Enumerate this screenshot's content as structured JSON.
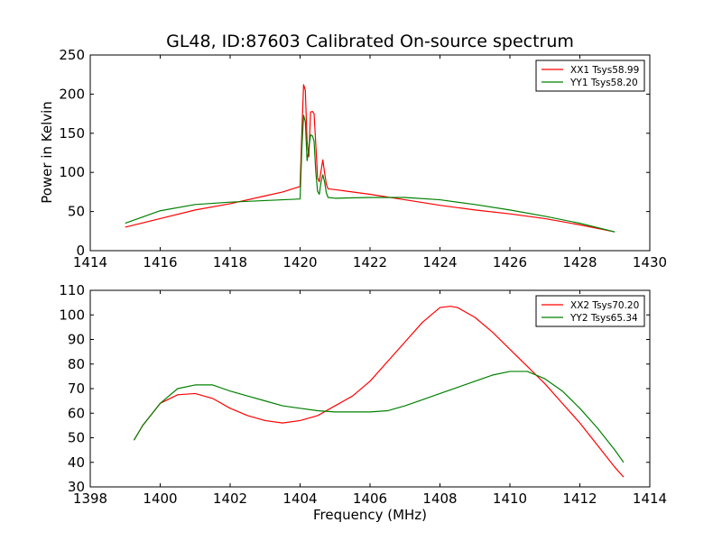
{
  "chart_data": [
    {
      "type": "line",
      "title": "GL48, ID:87603 Calibrated On-source spectrum",
      "xlabel": "",
      "ylabel": "Power in Kelvin",
      "xlim": [
        1414,
        1430
      ],
      "ylim": [
        0,
        250
      ],
      "xticks": [
        1414,
        1416,
        1418,
        1420,
        1422,
        1424,
        1426,
        1428,
        1430
      ],
      "yticks": [
        0,
        50,
        100,
        150,
        200,
        250
      ],
      "grid": false,
      "legend_position": "top-right",
      "series": [
        {
          "name": "XX1 Tsys58.99",
          "color": "#ff0000",
          "points": [
            [
              1415.0,
              30
            ],
            [
              1416,
              41
            ],
            [
              1417,
              52
            ],
            [
              1418,
              60
            ],
            [
              1419,
              70
            ],
            [
              1419.5,
              75
            ],
            [
              1420.0,
              82
            ],
            [
              1420.05,
              150
            ],
            [
              1420.1,
              212
            ],
            [
              1420.15,
              205
            ],
            [
              1420.2,
              140
            ],
            [
              1420.25,
              120
            ],
            [
              1420.3,
              177
            ],
            [
              1420.35,
              178
            ],
            [
              1420.4,
              175
            ],
            [
              1420.45,
              135
            ],
            [
              1420.5,
              93
            ],
            [
              1420.55,
              88
            ],
            [
              1420.6,
              102
            ],
            [
              1420.65,
              116
            ],
            [
              1420.7,
              100
            ],
            [
              1420.75,
              85
            ],
            [
              1420.8,
              79
            ],
            [
              1421,
              78
            ],
            [
              1422,
              72
            ],
            [
              1423,
              65
            ],
            [
              1424,
              58
            ],
            [
              1425,
              52
            ],
            [
              1426,
              47
            ],
            [
              1427,
              41
            ],
            [
              1428,
              33
            ],
            [
              1429,
              24
            ]
          ]
        },
        {
          "name": "YY1 Tsys58.20",
          "color": "#008000",
          "points": [
            [
              1415.0,
              35
            ],
            [
              1416,
              51
            ],
            [
              1417,
              59
            ],
            [
              1418,
              62
            ],
            [
              1419,
              64
            ],
            [
              1420.0,
              66
            ],
            [
              1420.05,
              130
            ],
            [
              1420.1,
              173
            ],
            [
              1420.15,
              165
            ],
            [
              1420.2,
              115
            ],
            [
              1420.25,
              130
            ],
            [
              1420.3,
              148
            ],
            [
              1420.35,
              147
            ],
            [
              1420.4,
              140
            ],
            [
              1420.45,
              100
            ],
            [
              1420.5,
              76
            ],
            [
              1420.55,
              72
            ],
            [
              1420.6,
              88
            ],
            [
              1420.65,
              97
            ],
            [
              1420.7,
              88
            ],
            [
              1420.75,
              74
            ],
            [
              1420.8,
              68
            ],
            [
              1421,
              67
            ],
            [
              1422,
              68
            ],
            [
              1423,
              68
            ],
            [
              1424,
              65
            ],
            [
              1425,
              59
            ],
            [
              1426,
              52
            ],
            [
              1427,
              44
            ],
            [
              1428,
              35
            ],
            [
              1429,
              24
            ]
          ]
        }
      ]
    },
    {
      "type": "line",
      "title": "",
      "xlabel": "Frequency (MHz)",
      "ylabel": "",
      "xlim": [
        1398,
        1414
      ],
      "ylim": [
        30,
        110
      ],
      "xticks": [
        1398,
        1400,
        1402,
        1404,
        1406,
        1408,
        1410,
        1412,
        1414
      ],
      "yticks": [
        30,
        40,
        50,
        60,
        70,
        80,
        90,
        100,
        110
      ],
      "grid": false,
      "legend_position": "top-right",
      "series": [
        {
          "name": "XX2 Tsys70.20",
          "color": "#ff0000",
          "points": [
            [
              1399.25,
              49
            ],
            [
              1399.5,
              55
            ],
            [
              1400,
              64
            ],
            [
              1400.5,
              67.5
            ],
            [
              1401,
              68
            ],
            [
              1401.5,
              66
            ],
            [
              1402,
              62
            ],
            [
              1402.5,
              59
            ],
            [
              1403,
              57
            ],
            [
              1403.5,
              56
            ],
            [
              1404,
              57
            ],
            [
              1404.5,
              59
            ],
            [
              1405,
              63
            ],
            [
              1405.5,
              67
            ],
            [
              1406,
              73
            ],
            [
              1406.5,
              81
            ],
            [
              1407,
              89
            ],
            [
              1407.5,
              97
            ],
            [
              1408,
              103
            ],
            [
              1408.3,
              103.5
            ],
            [
              1408.5,
              103
            ],
            [
              1409,
              99
            ],
            [
              1409.5,
              93
            ],
            [
              1410,
              86
            ],
            [
              1410.5,
              79
            ],
            [
              1411,
              72
            ],
            [
              1411.5,
              64
            ],
            [
              1412,
              56
            ],
            [
              1412.5,
              47
            ],
            [
              1413,
              38
            ],
            [
              1413.25,
              34
            ]
          ]
        },
        {
          "name": "YY2 Tsys65.34",
          "color": "#008000",
          "points": [
            [
              1399.25,
              49
            ],
            [
              1399.5,
              55
            ],
            [
              1400,
              64
            ],
            [
              1400.5,
              70
            ],
            [
              1401,
              71.5
            ],
            [
              1401.5,
              71.5
            ],
            [
              1402,
              69
            ],
            [
              1402.5,
              67
            ],
            [
              1403,
              65
            ],
            [
              1403.5,
              63
            ],
            [
              1404,
              62
            ],
            [
              1404.5,
              61
            ],
            [
              1405,
              60.5
            ],
            [
              1405.5,
              60.5
            ],
            [
              1406,
              60.5
            ],
            [
              1406.5,
              61
            ],
            [
              1407,
              63
            ],
            [
              1407.5,
              65.5
            ],
            [
              1408,
              68
            ],
            [
              1408.5,
              70.5
            ],
            [
              1409,
              73
            ],
            [
              1409.5,
              75.5
            ],
            [
              1410,
              77
            ],
            [
              1410.5,
              77
            ],
            [
              1411,
              74
            ],
            [
              1411.5,
              69
            ],
            [
              1412,
              62
            ],
            [
              1412.5,
              54
            ],
            [
              1413,
              45
            ],
            [
              1413.25,
              40
            ]
          ]
        }
      ]
    }
  ]
}
